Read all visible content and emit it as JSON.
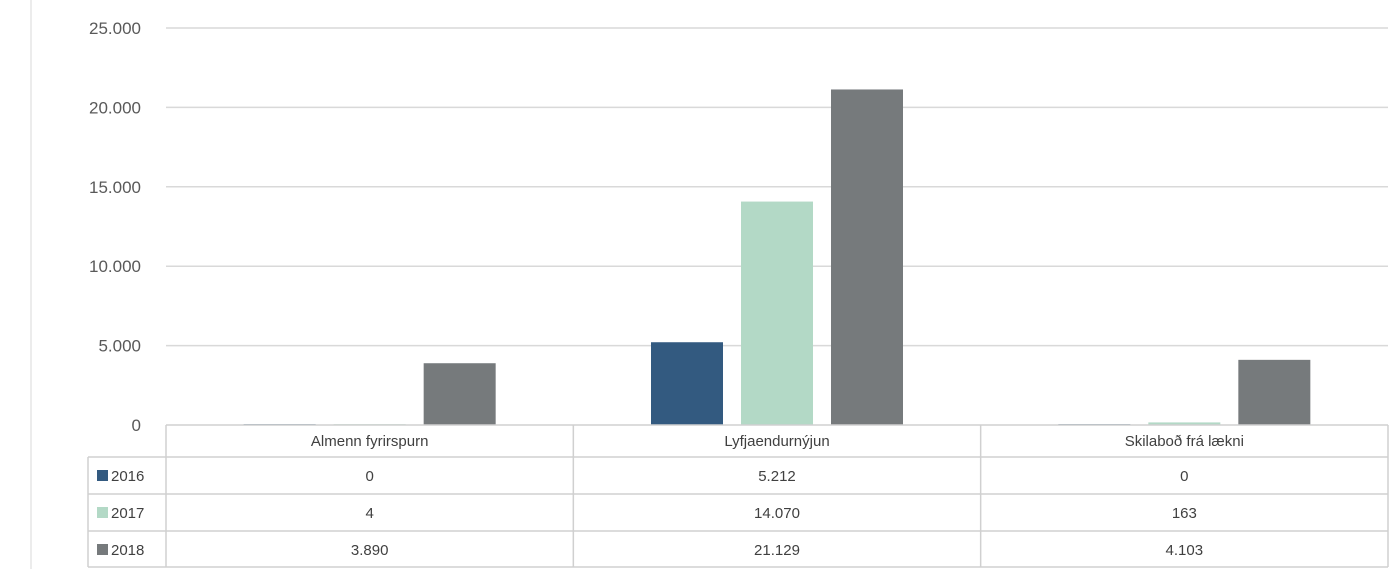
{
  "chart_data": {
    "type": "bar",
    "categories": [
      "Almenn fyrirspurn",
      "Lyfjaendurnýjun",
      "Skilaboð frá lækni"
    ],
    "series": [
      {
        "name": "2016",
        "color": "#335a80",
        "values": [
          0,
          5212,
          0
        ],
        "labels": [
          "0",
          "5.212",
          "0"
        ]
      },
      {
        "name": "2017",
        "color": "#b3d9c6",
        "values": [
          4,
          14070,
          163
        ],
        "labels": [
          "4",
          "14.070",
          "163"
        ]
      },
      {
        "name": "2018",
        "color": "#767a7c",
        "values": [
          3890,
          21129,
          4103
        ],
        "labels": [
          "3.890",
          "21.129",
          "4.103"
        ]
      }
    ],
    "y_ticks": [
      {
        "value": 0,
        "label": "0"
      },
      {
        "value": 5000,
        "label": "5.000"
      },
      {
        "value": 10000,
        "label": "10.000"
      },
      {
        "value": 15000,
        "label": "15.000"
      },
      {
        "value": 20000,
        "label": "20.000"
      },
      {
        "value": 25000,
        "label": "25.000"
      }
    ],
    "ylim": [
      0,
      25000
    ],
    "grid": true,
    "legend": "data-table-left",
    "data_table": true
  }
}
